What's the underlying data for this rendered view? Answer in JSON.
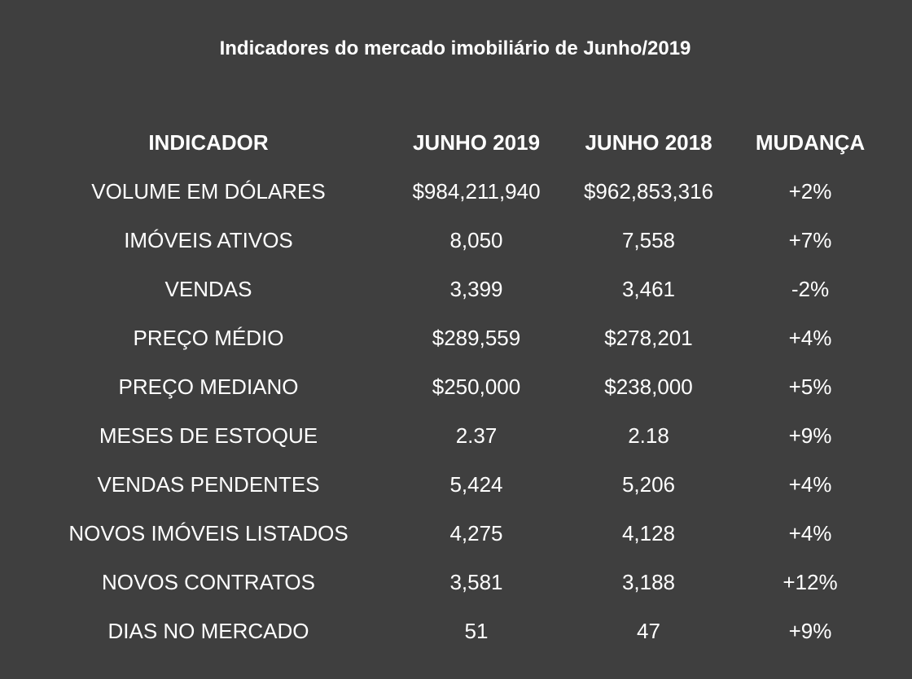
{
  "title": "Indicadores do mercado imobiliário de Junho/2019",
  "table": {
    "headers": [
      "INDICADOR",
      "JUNHO 2019",
      "JUNHO 2018",
      "MUDANÇA"
    ],
    "rows": [
      [
        "VOLUME EM DÓLARES",
        "$984,211,940",
        "$962,853,316",
        "+2%"
      ],
      [
        "IMÓVEIS ATIVOS",
        "8,050",
        "7,558",
        "+7%"
      ],
      [
        "VENDAS",
        "3,399",
        "3,461",
        "-2%"
      ],
      [
        "PREÇO MÉDIO",
        "$289,559",
        "$278,201",
        "+4%"
      ],
      [
        "PREÇO MEDIANO",
        "$250,000",
        "$238,000",
        "+5%"
      ],
      [
        "MESES DE ESTOQUE",
        "2.37",
        "2.18",
        "+9%"
      ],
      [
        "VENDAS PENDENTES",
        "5,424",
        "5,206",
        "+4%"
      ],
      [
        "NOVOS IMÓVEIS LISTADOS",
        "4,275",
        "4,128",
        "+4%"
      ],
      [
        "NOVOS CONTRATOS",
        "3,581",
        "3,188",
        "+12%"
      ],
      [
        "DIAS NO MERCADO",
        "51",
        "47",
        "+9%"
      ]
    ]
  }
}
